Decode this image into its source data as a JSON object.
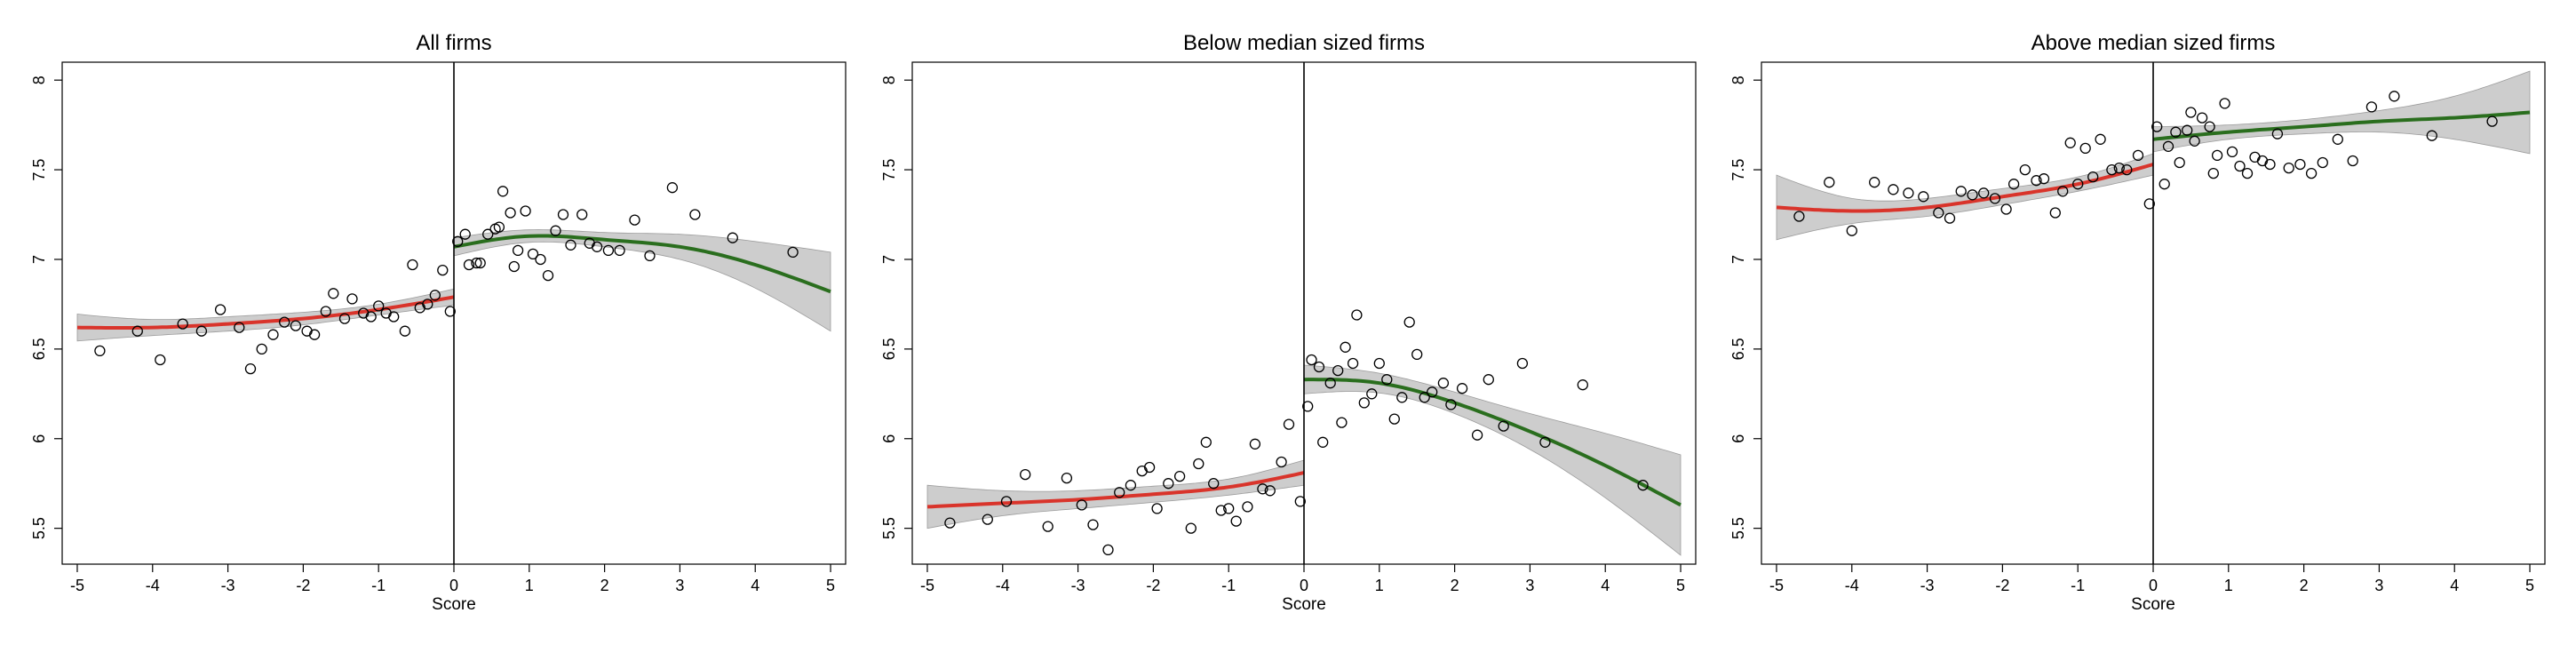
{
  "chart_data": [
    {
      "type": "scatter",
      "title": "All firms",
      "xlabel": "Score",
      "ylabel": "",
      "xlim": [
        -5.2,
        5.2
      ],
      "ylim": [
        5.3,
        8.1
      ],
      "xticks": [
        -5,
        -4,
        -3,
        -2,
        -1,
        0,
        1,
        2,
        3,
        4,
        5
      ],
      "yticks": [
        5.5,
        6,
        6.5,
        7,
        7.5,
        8
      ],
      "xtick_labels": [
        "-5",
        "-4",
        "-3",
        "-2",
        "-1",
        "0",
        "1",
        "2",
        "3",
        "4",
        "5"
      ],
      "ytick_labels": [
        "5.5",
        "6",
        "6.5",
        "7",
        "7.5",
        "8"
      ],
      "cutoff": 0,
      "grid": false,
      "points": [
        [
          -4.7,
          6.49
        ],
        [
          -4.2,
          6.6
        ],
        [
          -3.9,
          6.44
        ],
        [
          -3.6,
          6.64
        ],
        [
          -3.35,
          6.6
        ],
        [
          -3.1,
          6.72
        ],
        [
          -2.85,
          6.62
        ],
        [
          -2.7,
          6.39
        ],
        [
          -2.55,
          6.5
        ],
        [
          -2.4,
          6.58
        ],
        [
          -2.25,
          6.65
        ],
        [
          -2.1,
          6.63
        ],
        [
          -1.95,
          6.6
        ],
        [
          -1.85,
          6.58
        ],
        [
          -1.7,
          6.71
        ],
        [
          -1.6,
          6.81
        ],
        [
          -1.45,
          6.67
        ],
        [
          -1.35,
          6.78
        ],
        [
          -1.2,
          6.7
        ],
        [
          -1.1,
          6.68
        ],
        [
          -1.0,
          6.74
        ],
        [
          -0.9,
          6.7
        ],
        [
          -0.8,
          6.68
        ],
        [
          -0.65,
          6.6
        ],
        [
          -0.55,
          6.97
        ],
        [
          -0.45,
          6.73
        ],
        [
          -0.35,
          6.75
        ],
        [
          -0.25,
          6.8
        ],
        [
          -0.15,
          6.94
        ],
        [
          -0.05,
          6.71
        ],
        [
          0.05,
          7.1
        ],
        [
          0.15,
          7.14
        ],
        [
          0.2,
          6.97
        ],
        [
          0.3,
          6.98
        ],
        [
          0.35,
          6.98
        ],
        [
          0.45,
          7.14
        ],
        [
          0.55,
          7.17
        ],
        [
          0.6,
          7.18
        ],
        [
          0.65,
          7.38
        ],
        [
          0.75,
          7.26
        ],
        [
          0.8,
          6.96
        ],
        [
          0.85,
          7.05
        ],
        [
          0.95,
          7.27
        ],
        [
          1.05,
          7.03
        ],
        [
          1.15,
          7.0
        ],
        [
          1.25,
          6.91
        ],
        [
          1.35,
          7.16
        ],
        [
          1.45,
          7.25
        ],
        [
          1.55,
          7.08
        ],
        [
          1.7,
          7.25
        ],
        [
          1.8,
          7.09
        ],
        [
          1.9,
          7.07
        ],
        [
          2.05,
          7.05
        ],
        [
          2.2,
          7.05
        ],
        [
          2.4,
          7.22
        ],
        [
          2.6,
          7.02
        ],
        [
          2.9,
          7.4
        ],
        [
          3.2,
          7.25
        ],
        [
          3.7,
          7.12
        ],
        [
          4.5,
          7.04
        ]
      ],
      "fit_left": [
        [
          -5,
          6.62,
          0.075
        ],
        [
          -4,
          6.62,
          0.045
        ],
        [
          -3,
          6.64,
          0.04
        ],
        [
          -2,
          6.67,
          0.035
        ],
        [
          -1,
          6.72,
          0.03
        ],
        [
          0,
          6.79,
          0.045
        ]
      ],
      "fit_right": [
        [
          0,
          7.07,
          0.05
        ],
        [
          1,
          7.13,
          0.035
        ],
        [
          2,
          7.11,
          0.04
        ],
        [
          3,
          7.07,
          0.07
        ],
        [
          4,
          6.97,
          0.13
        ],
        [
          5,
          6.82,
          0.22
        ]
      ],
      "colors": {
        "left_fit": "#d9342b",
        "right_fit": "#2a6e1e",
        "band": "#c4c4c4",
        "band_edge": "#9c9c9c",
        "marker": "#000000"
      }
    },
    {
      "type": "scatter",
      "title": "Below median sized firms",
      "xlabel": "Score",
      "ylabel": "",
      "xlim": [
        -5.2,
        5.2
      ],
      "ylim": [
        5.3,
        8.1
      ],
      "xticks": [
        -5,
        -4,
        -3,
        -2,
        -1,
        0,
        1,
        2,
        3,
        4,
        5
      ],
      "yticks": [
        5.5,
        6,
        6.5,
        7,
        7.5,
        8
      ],
      "xtick_labels": [
        "-5",
        "-4",
        "-3",
        "-2",
        "-1",
        "0",
        "1",
        "2",
        "3",
        "4",
        "5"
      ],
      "ytick_labels": [
        "5.5",
        "6",
        "6.5",
        "7",
        "7.5",
        "8"
      ],
      "cutoff": 0,
      "grid": false,
      "points": [
        [
          -4.7,
          5.53
        ],
        [
          -4.2,
          5.55
        ],
        [
          -3.95,
          5.65
        ],
        [
          -3.7,
          5.8
        ],
        [
          -3.4,
          5.51
        ],
        [
          -3.15,
          5.78
        ],
        [
          -2.95,
          5.63
        ],
        [
          -2.8,
          5.52
        ],
        [
          -2.6,
          5.38
        ],
        [
          -2.45,
          5.7
        ],
        [
          -2.3,
          5.74
        ],
        [
          -2.15,
          5.82
        ],
        [
          -2.05,
          5.84
        ],
        [
          -1.95,
          5.61
        ],
        [
          -1.8,
          5.75
        ],
        [
          -1.65,
          5.79
        ],
        [
          -1.5,
          5.5
        ],
        [
          -1.4,
          5.86
        ],
        [
          -1.3,
          5.98
        ],
        [
          -1.2,
          5.75
        ],
        [
          -1.1,
          5.6
        ],
        [
          -1.0,
          5.61
        ],
        [
          -0.9,
          5.54
        ],
        [
          -0.75,
          5.62
        ],
        [
          -0.65,
          5.97
        ],
        [
          -0.55,
          5.72
        ],
        [
          -0.45,
          5.71
        ],
        [
          -0.3,
          5.87
        ],
        [
          -0.2,
          6.08
        ],
        [
          -0.05,
          5.65
        ],
        [
          0.05,
          6.18
        ],
        [
          0.1,
          6.44
        ],
        [
          0.2,
          6.4
        ],
        [
          0.25,
          5.98
        ],
        [
          0.35,
          6.31
        ],
        [
          0.45,
          6.38
        ],
        [
          0.5,
          6.09
        ],
        [
          0.55,
          6.51
        ],
        [
          0.65,
          6.42
        ],
        [
          0.7,
          6.69
        ],
        [
          0.8,
          6.2
        ],
        [
          0.9,
          6.25
        ],
        [
          1.0,
          6.42
        ],
        [
          1.1,
          6.33
        ],
        [
          1.2,
          6.11
        ],
        [
          1.3,
          6.23
        ],
        [
          1.4,
          6.65
        ],
        [
          1.5,
          6.47
        ],
        [
          1.6,
          6.23
        ],
        [
          1.7,
          6.26
        ],
        [
          1.85,
          6.31
        ],
        [
          1.95,
          6.19
        ],
        [
          2.1,
          6.28
        ],
        [
          2.3,
          6.02
        ],
        [
          2.45,
          6.33
        ],
        [
          2.65,
          6.07
        ],
        [
          2.9,
          6.42
        ],
        [
          3.2,
          5.98
        ],
        [
          3.7,
          6.3
        ],
        [
          4.5,
          5.74
        ]
      ],
      "fit_left": [
        [
          -5,
          5.62,
          0.12
        ],
        [
          -4,
          5.64,
          0.07
        ],
        [
          -3,
          5.66,
          0.05
        ],
        [
          -2,
          5.69,
          0.045
        ],
        [
          -1,
          5.73,
          0.045
        ],
        [
          0,
          5.81,
          0.07
        ]
      ],
      "fit_right": [
        [
          0,
          6.33,
          0.08
        ],
        [
          1,
          6.31,
          0.055
        ],
        [
          2,
          6.2,
          0.06
        ],
        [
          3,
          6.04,
          0.1
        ],
        [
          4,
          5.85,
          0.18
        ],
        [
          5,
          5.63,
          0.28
        ]
      ],
      "colors": {
        "left_fit": "#d9342b",
        "right_fit": "#2a6e1e",
        "band": "#c4c4c4",
        "band_edge": "#9c9c9c",
        "marker": "#000000"
      }
    },
    {
      "type": "scatter",
      "title": "Above median sized firms",
      "xlabel": "Score",
      "ylabel": "",
      "xlim": [
        -5.2,
        5.2
      ],
      "ylim": [
        5.3,
        8.1
      ],
      "xticks": [
        -5,
        -4,
        -3,
        -2,
        -1,
        0,
        1,
        2,
        3,
        4,
        5
      ],
      "yticks": [
        5.5,
        6,
        6.5,
        7,
        7.5,
        8
      ],
      "xtick_labels": [
        "-5",
        "-4",
        "-3",
        "-2",
        "-1",
        "0",
        "1",
        "2",
        "3",
        "4",
        "5"
      ],
      "ytick_labels": [
        "5.5",
        "6",
        "6.5",
        "7",
        "7.5",
        "8"
      ],
      "cutoff": 0,
      "grid": false,
      "points": [
        [
          -4.7,
          7.24
        ],
        [
          -4.3,
          7.43
        ],
        [
          -4.0,
          7.16
        ],
        [
          -3.7,
          7.43
        ],
        [
          -3.45,
          7.39
        ],
        [
          -3.25,
          7.37
        ],
        [
          -3.05,
          7.35
        ],
        [
          -2.85,
          7.26
        ],
        [
          -2.7,
          7.23
        ],
        [
          -2.55,
          7.38
        ],
        [
          -2.4,
          7.36
        ],
        [
          -2.25,
          7.37
        ],
        [
          -2.1,
          7.34
        ],
        [
          -1.95,
          7.28
        ],
        [
          -1.85,
          7.42
        ],
        [
          -1.7,
          7.5
        ],
        [
          -1.55,
          7.44
        ],
        [
          -1.45,
          7.45
        ],
        [
          -1.3,
          7.26
        ],
        [
          -1.2,
          7.38
        ],
        [
          -1.1,
          7.65
        ],
        [
          -1.0,
          7.42
        ],
        [
          -0.9,
          7.62
        ],
        [
          -0.8,
          7.46
        ],
        [
          -0.7,
          7.67
        ],
        [
          -0.55,
          7.5
        ],
        [
          -0.45,
          7.51
        ],
        [
          -0.35,
          7.5
        ],
        [
          -0.2,
          7.58
        ],
        [
          -0.05,
          7.31
        ],
        [
          0.05,
          7.74
        ],
        [
          0.15,
          7.42
        ],
        [
          0.2,
          7.63
        ],
        [
          0.3,
          7.71
        ],
        [
          0.35,
          7.54
        ],
        [
          0.45,
          7.72
        ],
        [
          0.5,
          7.82
        ],
        [
          0.55,
          7.66
        ],
        [
          0.65,
          7.79
        ],
        [
          0.75,
          7.74
        ],
        [
          0.8,
          7.48
        ],
        [
          0.85,
          7.58
        ],
        [
          0.95,
          7.87
        ],
        [
          1.05,
          7.6
        ],
        [
          1.15,
          7.52
        ],
        [
          1.25,
          7.48
        ],
        [
          1.35,
          7.57
        ],
        [
          1.45,
          7.55
        ],
        [
          1.55,
          7.53
        ],
        [
          1.65,
          7.7
        ],
        [
          1.8,
          7.51
        ],
        [
          1.95,
          7.53
        ],
        [
          2.1,
          7.48
        ],
        [
          2.25,
          7.54
        ],
        [
          2.45,
          7.67
        ],
        [
          2.65,
          7.55
        ],
        [
          2.9,
          7.85
        ],
        [
          3.2,
          7.91
        ],
        [
          3.7,
          7.69
        ],
        [
          4.5,
          7.77
        ]
      ],
      "fit_left": [
        [
          -5,
          7.29,
          0.18
        ],
        [
          -4,
          7.27,
          0.07
        ],
        [
          -3,
          7.29,
          0.05
        ],
        [
          -2,
          7.35,
          0.045
        ],
        [
          -1,
          7.42,
          0.04
        ],
        [
          0,
          7.53,
          0.06
        ]
      ],
      "fit_right": [
        [
          0,
          7.67,
          0.07
        ],
        [
          1,
          7.71,
          0.04
        ],
        [
          2,
          7.74,
          0.04
        ],
        [
          3,
          7.77,
          0.06
        ],
        [
          4,
          7.79,
          0.12
        ],
        [
          5,
          7.82,
          0.23
        ]
      ],
      "colors": {
        "left_fit": "#d9342b",
        "right_fit": "#2a6e1e",
        "band": "#c4c4c4",
        "band_edge": "#9c9c9c",
        "marker": "#000000"
      }
    }
  ]
}
